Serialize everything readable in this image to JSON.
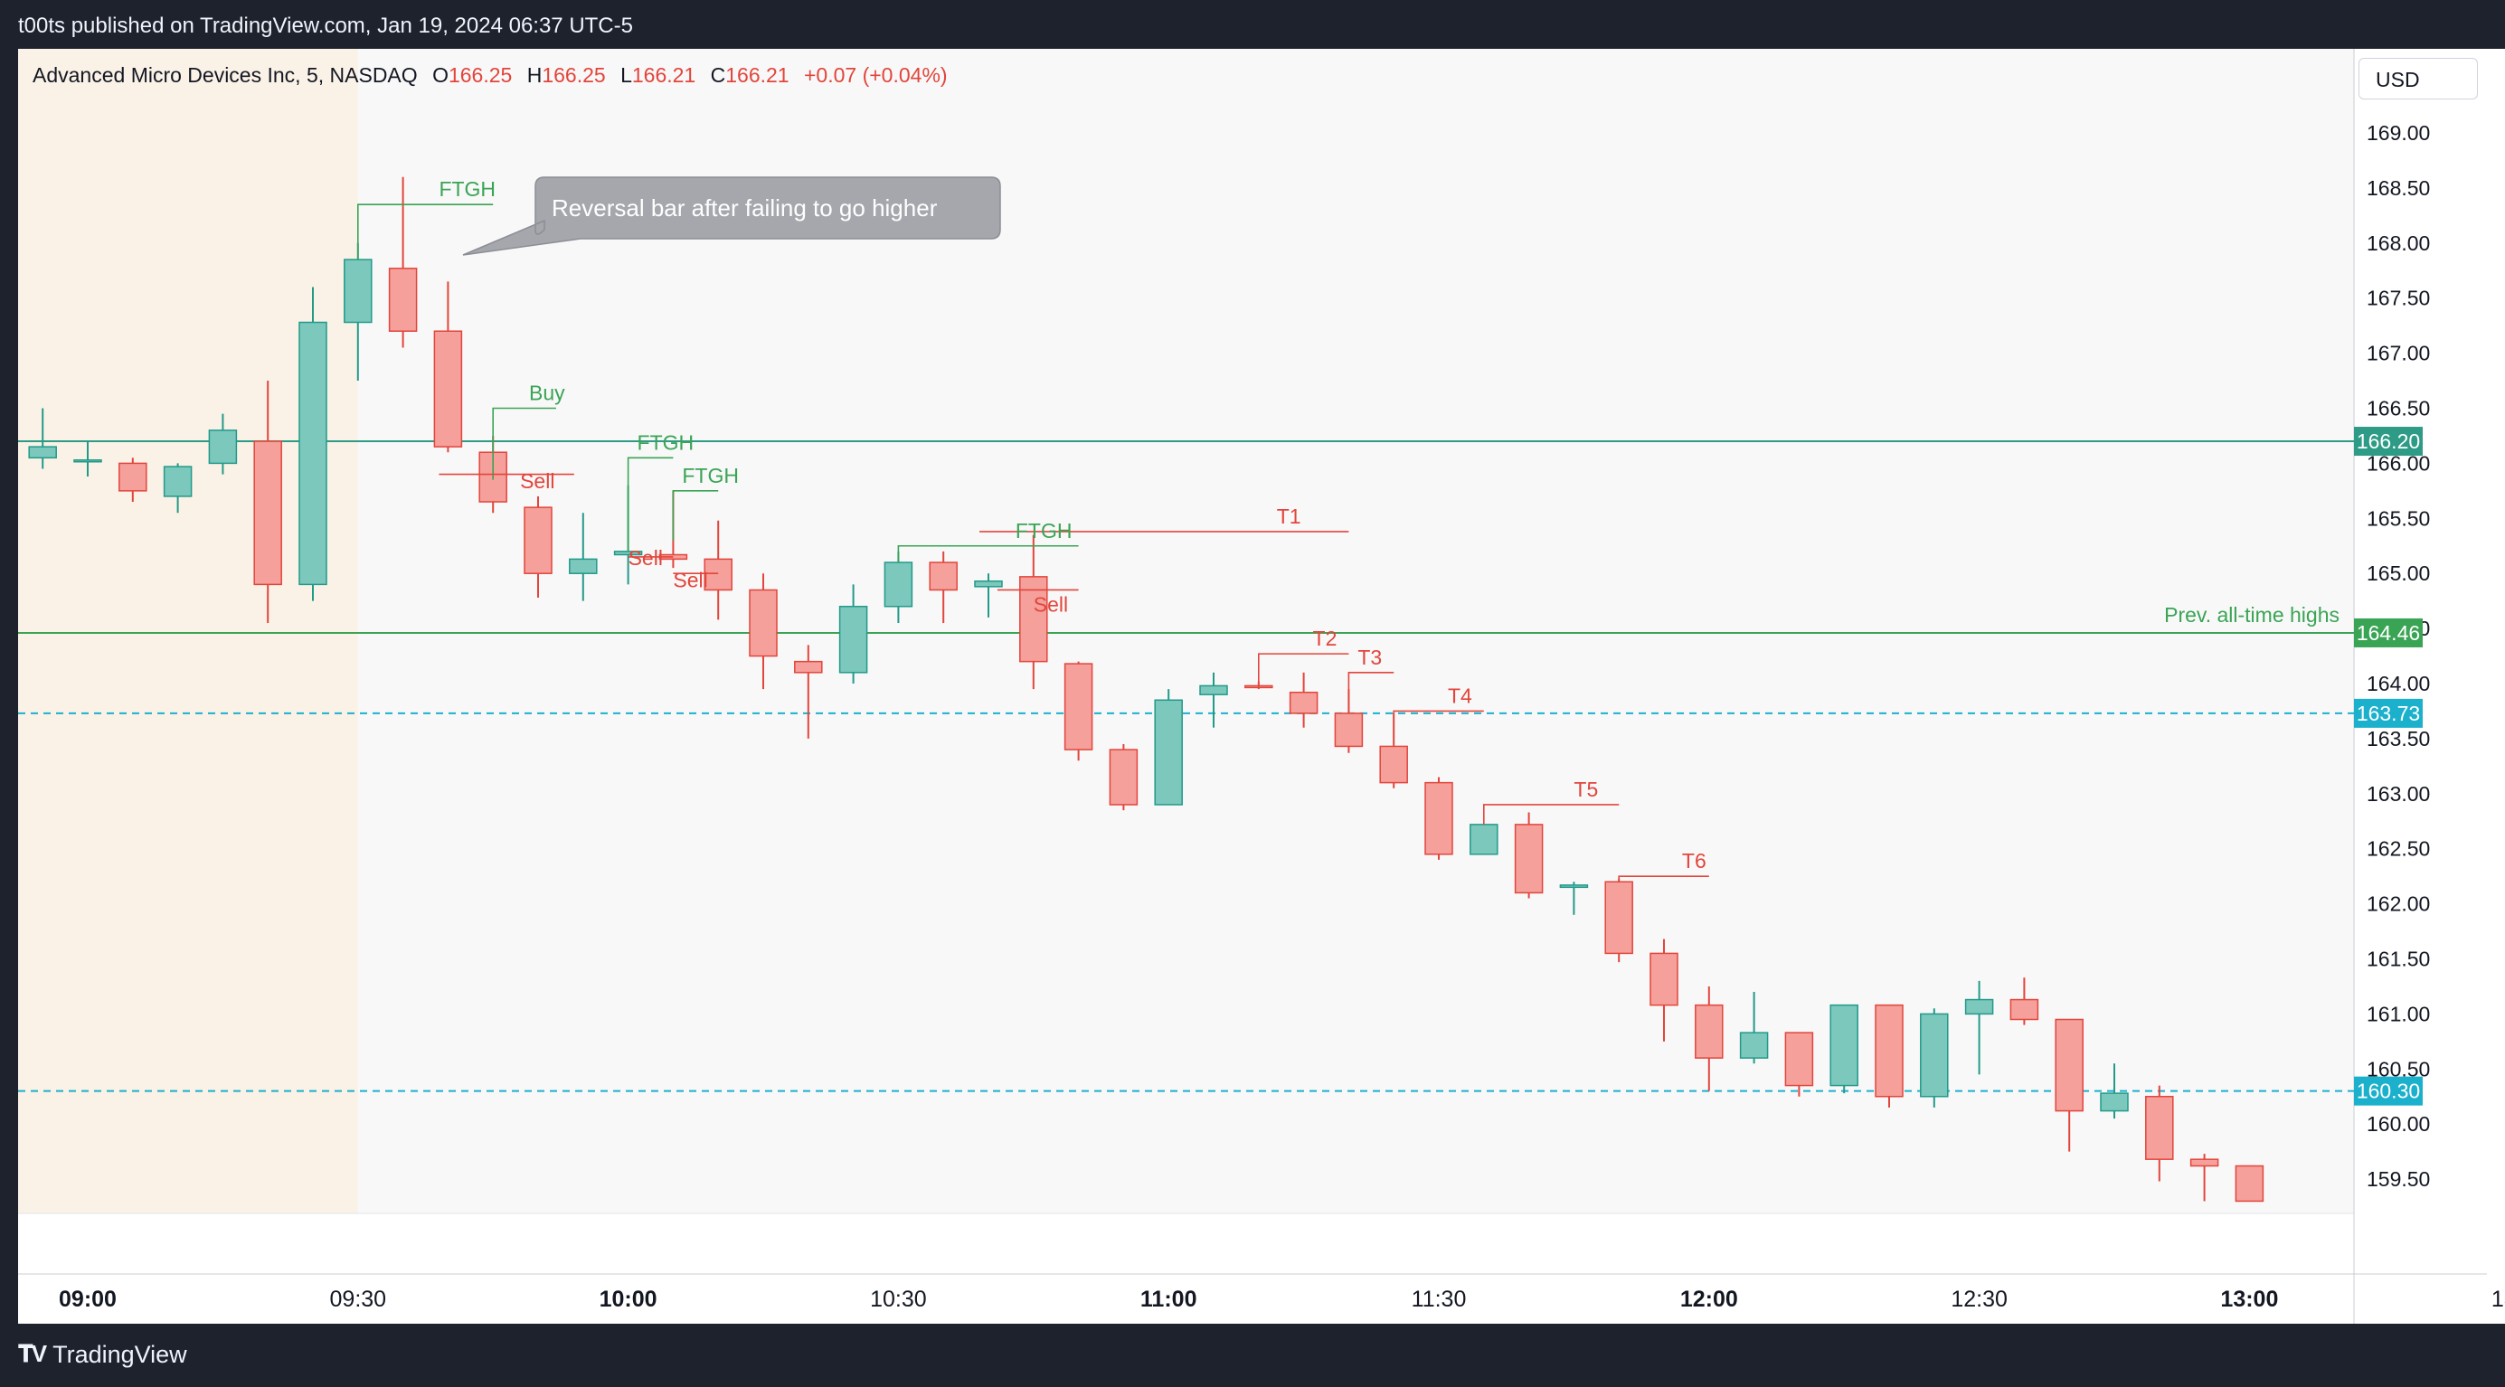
{
  "header": {
    "publish_info": "t00ts published on TradingView.com, Jan 19, 2024 06:37 UTC-5"
  },
  "footer": {
    "brand": "TradingView"
  },
  "legend": {
    "symbol": "Advanced Micro Devices Inc, 5, NASDAQ",
    "o_label": "O",
    "o_value": "166.25",
    "h_label": "H",
    "h_value": "166.25",
    "l_label": "L",
    "l_value": "166.21",
    "c_label": "C",
    "c_value": "166.21",
    "change": "+0.07 (+0.04%)"
  },
  "currency": "USD",
  "colors": {
    "up": "#7cc8bd",
    "up_border": "#229a89",
    "down": "#f5a09a",
    "down_border": "#e2453c",
    "green": "#3aa455",
    "red": "#e2453c",
    "cyan": "#1bb0cc",
    "teal_line": "#2d9b85"
  },
  "chart_data": {
    "type": "candlestick",
    "title": "Advanced Micro Devices Inc, 5, NASDAQ",
    "interval_minutes": 5,
    "y_range": [
      159.3,
      169.5
    ],
    "y_ticks": [
      "169.00",
      "168.50",
      "168.00",
      "167.50",
      "167.00",
      "166.50",
      "166.00",
      "165.50",
      "165.00",
      "164.50",
      "164.00",
      "163.50",
      "163.00",
      "162.50",
      "162.00",
      "161.50",
      "161.00",
      "160.50",
      "160.00",
      "159.50"
    ],
    "x_ticks": [
      {
        "label": "09:00",
        "bold": true,
        "time": "09:00"
      },
      {
        "label": "09:30",
        "bold": false,
        "time": "09:30"
      },
      {
        "label": "10:00",
        "bold": true,
        "time": "10:00"
      },
      {
        "label": "10:30",
        "bold": false,
        "time": "10:30"
      },
      {
        "label": "11:00",
        "bold": true,
        "time": "11:00"
      },
      {
        "label": "11:30",
        "bold": false,
        "time": "11:30"
      },
      {
        "label": "12:00",
        "bold": true,
        "time": "12:00"
      },
      {
        "label": "12:30",
        "bold": false,
        "time": "12:30"
      },
      {
        "label": "13:00",
        "bold": true,
        "time": "13:00"
      },
      {
        "label": "13:30",
        "bold": false,
        "time": "13:30"
      },
      {
        "label": "14:0",
        "bold": true,
        "time": "14:00"
      }
    ],
    "premarket_end": "09:30",
    "candles": [
      {
        "t": "08:40",
        "o": 165.2,
        "h": 165.23,
        "l": 165.17,
        "c": 165.23
      },
      {
        "t": "08:45",
        "o": 165.25,
        "h": 165.35,
        "l": 164.92,
        "c": 165.28
      },
      {
        "t": "08:50",
        "o": 165.28,
        "h": 166.3,
        "l": 165.25,
        "c": 165.9
      },
      {
        "t": "08:55",
        "o": 166.05,
        "h": 166.5,
        "l": 165.95,
        "c": 166.15
      },
      {
        "t": "09:00",
        "o": 166.03,
        "h": 166.2,
        "l": 165.88,
        "c": 166.03
      },
      {
        "t": "09:05",
        "o": 166.0,
        "h": 166.05,
        "l": 165.65,
        "c": 165.75
      },
      {
        "t": "09:10",
        "o": 165.7,
        "h": 166.0,
        "l": 165.55,
        "c": 165.97
      },
      {
        "t": "09:15",
        "o": 166.0,
        "h": 166.45,
        "l": 165.9,
        "c": 166.3
      },
      {
        "t": "09:20",
        "o": 166.2,
        "h": 166.75,
        "l": 164.55,
        "c": 164.9
      },
      {
        "t": "09:25",
        "o": 164.9,
        "h": 167.6,
        "l": 164.75,
        "c": 167.28
      },
      {
        "t": "09:30",
        "o": 167.28,
        "h": 168.0,
        "l": 166.75,
        "c": 167.85
      },
      {
        "t": "09:35",
        "o": 167.77,
        "h": 168.6,
        "l": 167.05,
        "c": 167.2
      },
      {
        "t": "09:40",
        "o": 167.2,
        "h": 167.65,
        "l": 166.1,
        "c": 166.15
      },
      {
        "t": "09:45",
        "o": 166.1,
        "h": 166.25,
        "l": 165.55,
        "c": 165.65
      },
      {
        "t": "09:50",
        "o": 165.6,
        "h": 165.7,
        "l": 164.78,
        "c": 165.0
      },
      {
        "t": "09:55",
        "o": 165.0,
        "h": 165.55,
        "l": 164.75,
        "c": 165.13
      },
      {
        "t": "10:00",
        "o": 165.17,
        "h": 165.8,
        "l": 164.9,
        "c": 165.2
      },
      {
        "t": "10:05",
        "o": 165.17,
        "h": 165.75,
        "l": 165.05,
        "c": 165.13
      },
      {
        "t": "10:10",
        "o": 165.13,
        "h": 165.48,
        "l": 164.58,
        "c": 164.85
      },
      {
        "t": "10:15",
        "o": 164.85,
        "h": 165.0,
        "l": 163.95,
        "c": 164.25
      },
      {
        "t": "10:20",
        "o": 164.2,
        "h": 164.35,
        "l": 163.5,
        "c": 164.1
      },
      {
        "t": "10:25",
        "o": 164.1,
        "h": 164.9,
        "l": 164.0,
        "c": 164.7
      },
      {
        "t": "10:30",
        "o": 164.7,
        "h": 165.2,
        "l": 164.55,
        "c": 165.1
      },
      {
        "t": "10:35",
        "o": 165.1,
        "h": 165.2,
        "l": 164.55,
        "c": 164.85
      },
      {
        "t": "10:40",
        "o": 164.88,
        "h": 165.0,
        "l": 164.6,
        "c": 164.93
      },
      {
        "t": "10:45",
        "o": 164.97,
        "h": 165.35,
        "l": 163.95,
        "c": 164.2
      },
      {
        "t": "10:50",
        "o": 164.18,
        "h": 164.2,
        "l": 163.3,
        "c": 163.4
      },
      {
        "t": "10:55",
        "o": 163.4,
        "h": 163.45,
        "l": 162.85,
        "c": 162.9
      },
      {
        "t": "11:00",
        "o": 162.9,
        "h": 163.95,
        "l": 162.9,
        "c": 163.85
      },
      {
        "t": "11:05",
        "o": 163.9,
        "h": 164.1,
        "l": 163.6,
        "c": 163.98
      },
      {
        "t": "11:10",
        "o": 163.98,
        "h": 164.02,
        "l": 163.95,
        "c": 163.97
      },
      {
        "t": "11:15",
        "o": 163.92,
        "h": 164.1,
        "l": 163.6,
        "c": 163.73
      },
      {
        "t": "11:20",
        "o": 163.73,
        "h": 163.95,
        "l": 163.37,
        "c": 163.43
      },
      {
        "t": "11:25",
        "o": 163.43,
        "h": 163.73,
        "l": 163.05,
        "c": 163.1
      },
      {
        "t": "11:30",
        "o": 163.1,
        "h": 163.15,
        "l": 162.4,
        "c": 162.45
      },
      {
        "t": "11:35",
        "o": 162.45,
        "h": 162.7,
        "l": 162.45,
        "c": 162.72
      },
      {
        "t": "11:40",
        "o": 162.72,
        "h": 162.83,
        "l": 162.05,
        "c": 162.1
      },
      {
        "t": "11:45",
        "o": 162.15,
        "h": 162.2,
        "l": 161.9,
        "c": 162.17
      },
      {
        "t": "11:50",
        "o": 162.2,
        "h": 162.23,
        "l": 161.47,
        "c": 161.55
      },
      {
        "t": "11:55",
        "o": 161.55,
        "h": 161.68,
        "l": 160.75,
        "c": 161.08
      },
      {
        "t": "12:00",
        "o": 161.08,
        "h": 161.25,
        "l": 160.3,
        "c": 160.6
      },
      {
        "t": "12:05",
        "o": 160.6,
        "h": 161.2,
        "l": 160.55,
        "c": 160.83
      },
      {
        "t": "12:10",
        "o": 160.83,
        "h": 160.83,
        "l": 160.25,
        "c": 160.35
      },
      {
        "t": "12:15",
        "o": 160.35,
        "h": 161.08,
        "l": 160.28,
        "c": 161.08
      },
      {
        "t": "12:20",
        "o": 161.08,
        "h": 161.08,
        "l": 160.15,
        "c": 160.25
      },
      {
        "t": "12:25",
        "o": 160.25,
        "h": 161.05,
        "l": 160.15,
        "c": 161.0
      },
      {
        "t": "12:30",
        "o": 161.0,
        "h": 161.3,
        "l": 160.45,
        "c": 161.13
      },
      {
        "t": "12:35",
        "o": 161.13,
        "h": 161.33,
        "l": 160.9,
        "c": 160.95
      },
      {
        "t": "12:40",
        "o": 160.95,
        "h": 160.95,
        "l": 159.75,
        "c": 160.12
      },
      {
        "t": "12:45",
        "o": 160.12,
        "h": 160.55,
        "l": 160.05,
        "c": 160.28
      },
      {
        "t": "12:50",
        "o": 160.25,
        "h": 160.35,
        "l": 159.48,
        "c": 159.68
      },
      {
        "t": "12:55",
        "o": 159.68,
        "h": 159.73,
        "l": 159.3,
        "c": 159.62
      },
      {
        "t": "13:00",
        "o": 159.62,
        "h": 159.62,
        "l": 159.3,
        "c": 159.3
      },
      {
        "t": "13:15",
        "o": 159.3,
        "h": 159.48,
        "l": 159.3,
        "c": 159.47
      },
      {
        "t": "13:20",
        "o": 159.45,
        "h": 159.92,
        "l": 159.4,
        "c": 159.9
      },
      {
        "t": "13:25",
        "o": 159.93,
        "h": 160.42,
        "l": 159.65,
        "c": 160.38
      },
      {
        "t": "13:30",
        "o": 160.38,
        "h": 160.45,
        "l": 160.2,
        "c": 160.4
      },
      {
        "t": "13:35",
        "o": 160.4,
        "h": 160.48,
        "l": 160.2,
        "c": 160.45
      },
      {
        "t": "13:40",
        "o": 160.45,
        "h": 160.93,
        "l": 160.22,
        "c": 160.75
      },
      {
        "t": "13:45",
        "o": 160.75,
        "h": 161.15,
        "l": 160.75,
        "c": 161.12
      }
    ],
    "horizontal_lines": [
      {
        "price": 166.2,
        "style": "solid",
        "color": "#2d9b85",
        "label": "166.20",
        "label_bg": "#2d9b85"
      },
      {
        "price": 164.46,
        "style": "solid",
        "color": "#3aa455",
        "label": "164.46",
        "label_bg": "#3aa455",
        "note": "Prev. all-time highs"
      },
      {
        "price": 163.73,
        "style": "dashed",
        "color": "#1bb0cc",
        "label": "163.73",
        "label_bg": "#1bb0cc"
      },
      {
        "price": 160.3,
        "style": "dashed",
        "color": "#1bb0cc",
        "label": "160.30",
        "label_bg": "#1bb0cc"
      }
    ],
    "callout": {
      "text": "Reversal bar after failing to go higher"
    },
    "annotations": [
      {
        "text": "FTGH",
        "color": "green",
        "line": [
          [
            "09:30",
            167.85
          ],
          [
            "09:30",
            168.35
          ],
          [
            "09:45",
            168.35
          ]
        ],
        "label_at": [
          "09:39",
          168.35
        ]
      },
      {
        "text": "Buy",
        "color": "green",
        "line": [
          [
            "09:45",
            165.85
          ],
          [
            "09:45",
            166.5
          ],
          [
            "09:52",
            166.5
          ]
        ],
        "label_at": [
          "09:49",
          166.5
        ]
      },
      {
        "text": "FTGH",
        "color": "green",
        "line": [
          [
            "10:00",
            165.2
          ],
          [
            "10:00",
            166.05
          ],
          [
            "10:05",
            166.05
          ]
        ],
        "label_at": [
          "10:01",
          166.05
        ]
      },
      {
        "text": "FTGH",
        "color": "green",
        "line": [
          [
            "10:05",
            165.3
          ],
          [
            "10:05",
            165.75
          ],
          [
            "10:10",
            165.75
          ]
        ],
        "label_at": [
          "10:06",
          165.75
        ]
      },
      {
        "text": "Sell",
        "color": "red",
        "line": [
          [
            "09:39",
            165.9
          ],
          [
            "09:54",
            165.9
          ]
        ],
        "label_at": [
          "09:48",
          165.7
        ]
      },
      {
        "text": "Sell",
        "color": "red",
        "line": [
          [
            "10:00",
            165.15
          ],
          [
            "10:05",
            165.15
          ]
        ],
        "label_at": [
          "10:00",
          165.0
        ]
      },
      {
        "text": "Sell",
        "color": "red",
        "line": [
          [
            "10:05",
            165.0
          ],
          [
            "10:10",
            165.0
          ]
        ],
        "label_at": [
          "10:05",
          164.8
        ]
      },
      {
        "text": "FTGH",
        "color": "green",
        "line": [
          [
            "10:30",
            165.1
          ],
          [
            "10:30",
            165.25
          ],
          [
            "10:50",
            165.25
          ]
        ],
        "label_at": [
          "10:43",
          165.25
        ]
      },
      {
        "text": "T1",
        "color": "red",
        "line": [
          [
            "10:39",
            165.38
          ],
          [
            "11:20",
            165.38
          ]
        ],
        "label_at": [
          "11:12",
          165.38
        ]
      },
      {
        "text": "Sell",
        "color": "red",
        "line": [
          [
            "10:41",
            164.85
          ],
          [
            "10:50",
            164.85
          ]
        ],
        "label_at": [
          "10:45",
          164.58
        ]
      },
      {
        "text": "T2",
        "color": "red",
        "line": [
          [
            "11:10",
            163.97
          ],
          [
            "11:10",
            164.27
          ],
          [
            "11:20",
            164.27
          ]
        ],
        "label_at": [
          "11:16",
          164.27
        ]
      },
      {
        "text": "T3",
        "color": "red",
        "line": [
          [
            "11:20",
            163.73
          ],
          [
            "11:20",
            164.1
          ],
          [
            "11:25",
            164.1
          ]
        ],
        "label_at": [
          "11:21",
          164.1
        ]
      },
      {
        "text": "T4",
        "color": "red",
        "line": [
          [
            "11:25",
            163.45
          ],
          [
            "11:25",
            163.75
          ],
          [
            "11:35",
            163.75
          ]
        ],
        "label_at": [
          "11:31",
          163.75
        ]
      },
      {
        "text": "T5",
        "color": "red",
        "line": [
          [
            "11:35",
            162.72
          ],
          [
            "11:35",
            162.9
          ],
          [
            "11:50",
            162.9
          ]
        ],
        "label_at": [
          "11:45",
          162.9
        ]
      },
      {
        "text": "T6",
        "color": "red",
        "line": [
          [
            "11:50",
            162.2
          ],
          [
            "11:50",
            162.25
          ],
          [
            "12:00",
            162.25
          ]
        ],
        "label_at": [
          "11:57",
          162.25
        ]
      }
    ]
  }
}
